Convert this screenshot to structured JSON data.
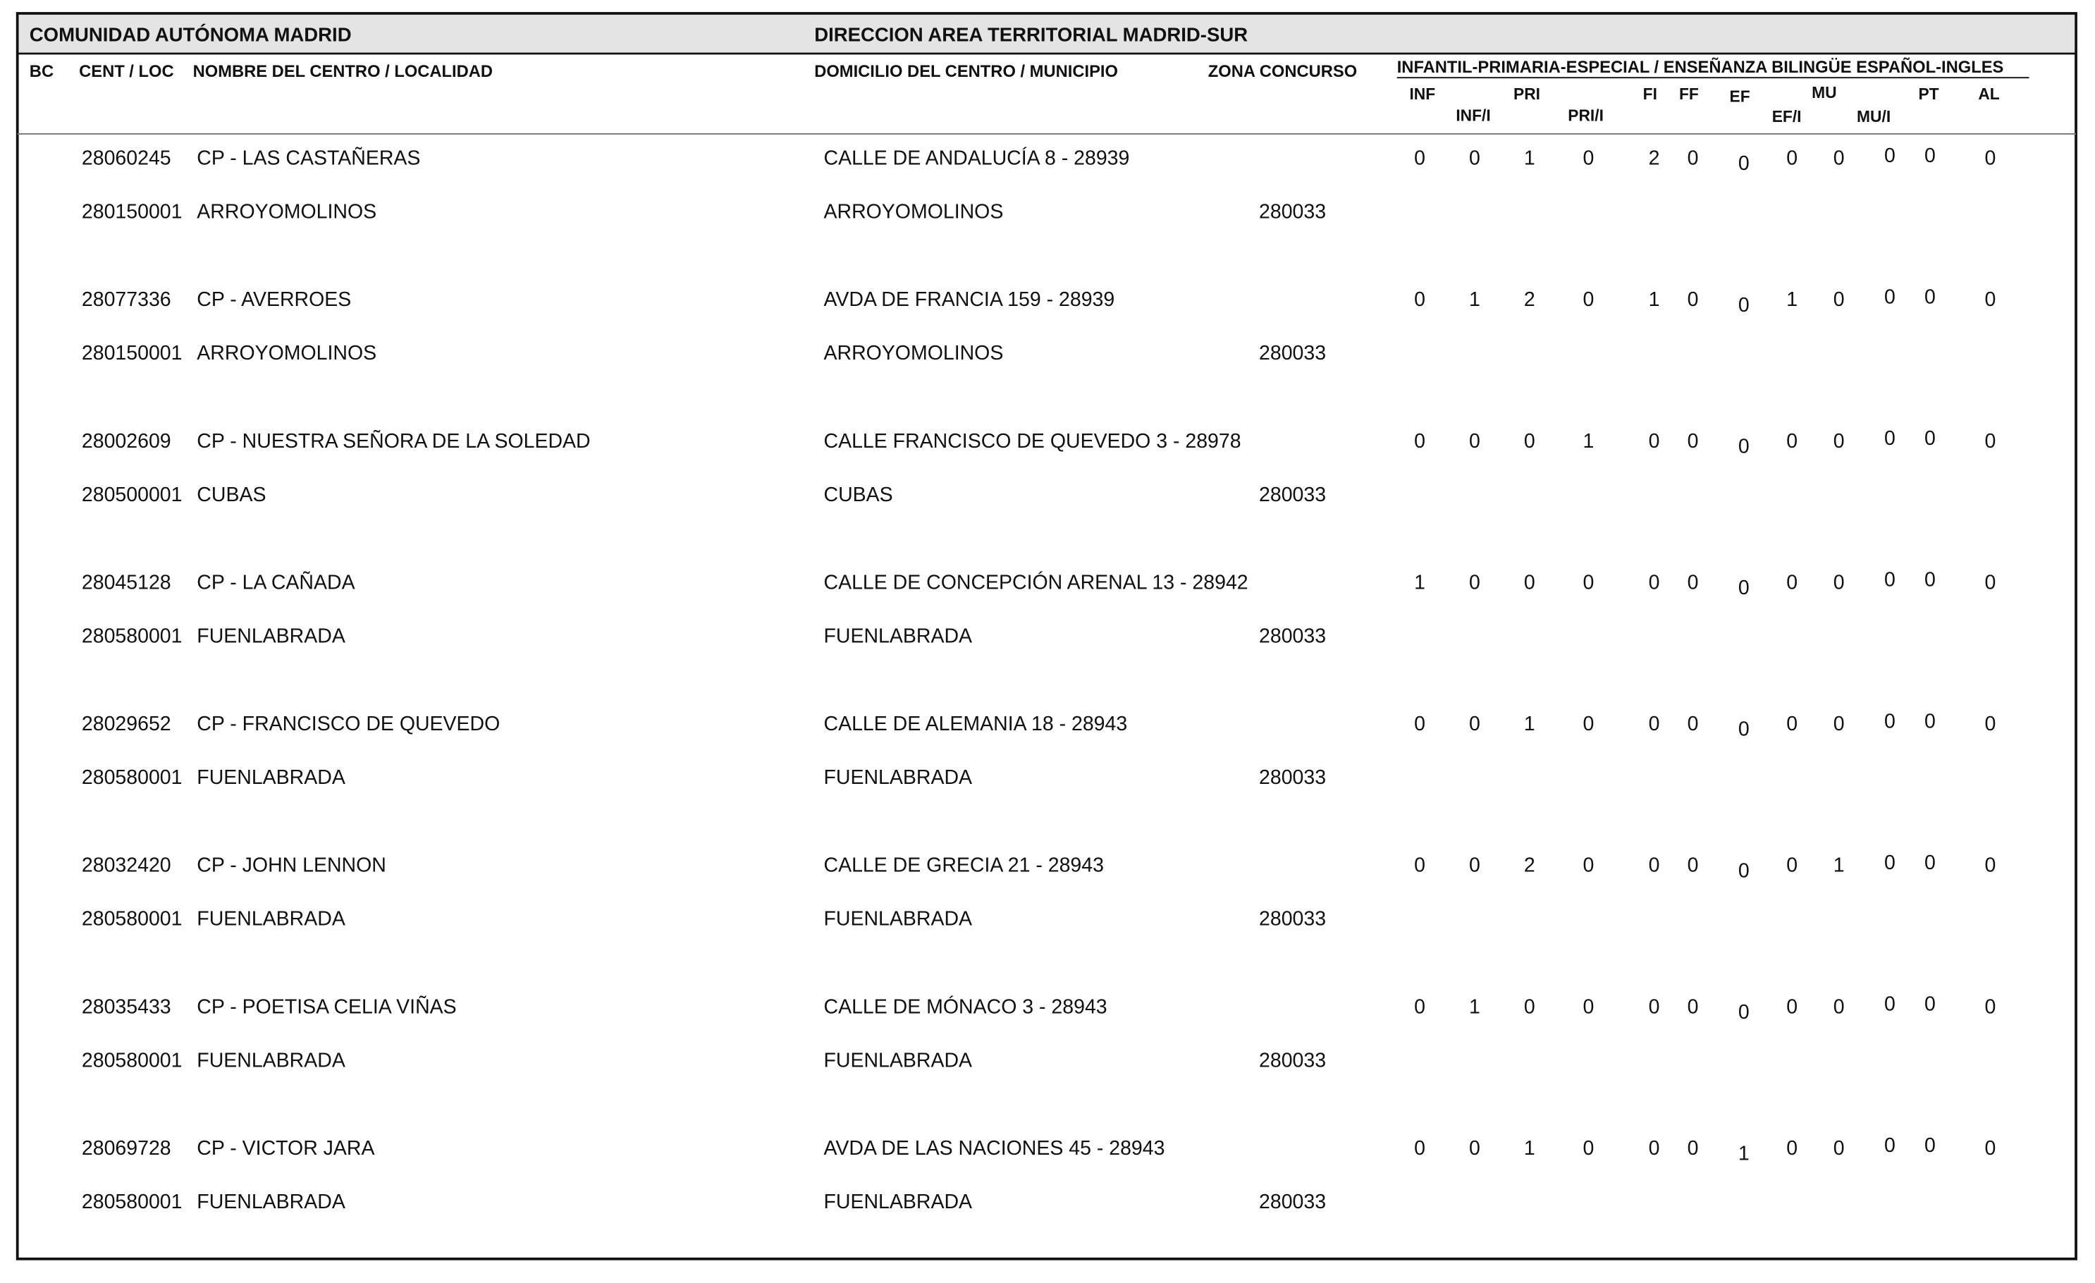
{
  "header": {
    "left": "COMUNIDAD AUTÓNOMA MADRID",
    "right": "DIRECCION AREA TERRITORIAL MADRID-SUR"
  },
  "columns": {
    "bc": "BC",
    "cent_loc": "CENT / LOC",
    "name": "NOMBRE DEL CENTRO / LOCALIDAD",
    "address": "DOMICILIO DEL CENTRO / MUNICIPIO",
    "zona": "ZONA CONCURSO",
    "group": "INFANTIL-PRIMARIA-ESPECIAL / ENSEÑANZA BILINGÜE ESPAÑOL-INGLES",
    "subs": [
      "INF",
      "INF/I",
      "PRI",
      "PRI/I",
      "FI",
      "FF",
      "EF",
      "EF/I",
      "MU",
      "MU/I",
      "PT",
      "AL"
    ]
  },
  "rows": [
    {
      "code": "28060245",
      "name": "CP - LAS CASTAÑERAS",
      "address": "CALLE DE ANDALUCÍA 8 - 28939",
      "loc_code": "280150001",
      "locality": "ARROYOMOLINOS",
      "municipality": "ARROYOMOLINOS",
      "zona": "280033",
      "counts": [
        0,
        0,
        1,
        0,
        2,
        0,
        0,
        0,
        0,
        0,
        0,
        0
      ]
    },
    {
      "code": "28077336",
      "name": "CP - AVERROES",
      "address": "AVDA DE FRANCIA 159 - 28939",
      "loc_code": "280150001",
      "locality": "ARROYOMOLINOS",
      "municipality": "ARROYOMOLINOS",
      "zona": "280033",
      "counts": [
        0,
        1,
        2,
        0,
        1,
        0,
        0,
        1,
        0,
        0,
        0,
        0
      ]
    },
    {
      "code": "28002609",
      "name": "CP - NUESTRA SEÑORA DE LA SOLEDAD",
      "address": "CALLE FRANCISCO DE QUEVEDO 3 - 28978",
      "loc_code": "280500001",
      "locality": "CUBAS",
      "municipality": "CUBAS",
      "zona": "280033",
      "counts": [
        0,
        0,
        0,
        1,
        0,
        0,
        0,
        0,
        0,
        0,
        0,
        0
      ]
    },
    {
      "code": "28045128",
      "name": "CP - LA CAÑADA",
      "address": "CALLE DE CONCEPCIÓN ARENAL 13 - 28942",
      "loc_code": "280580001",
      "locality": "FUENLABRADA",
      "municipality": "FUENLABRADA",
      "zona": "280033",
      "counts": [
        1,
        0,
        0,
        0,
        0,
        0,
        0,
        0,
        0,
        0,
        0,
        0
      ]
    },
    {
      "code": "28029652",
      "name": "CP - FRANCISCO DE QUEVEDO",
      "address": "CALLE DE ALEMANIA 18 - 28943",
      "loc_code": "280580001",
      "locality": "FUENLABRADA",
      "municipality": "FUENLABRADA",
      "zona": "280033",
      "counts": [
        0,
        0,
        1,
        0,
        0,
        0,
        0,
        0,
        0,
        0,
        0,
        0
      ]
    },
    {
      "code": "28032420",
      "name": "CP - JOHN LENNON",
      "address": "CALLE DE GRECIA 21 - 28943",
      "loc_code": "280580001",
      "locality": "FUENLABRADA",
      "municipality": "FUENLABRADA",
      "zona": "280033",
      "counts": [
        0,
        0,
        2,
        0,
        0,
        0,
        0,
        0,
        1,
        0,
        0,
        0
      ]
    },
    {
      "code": "28035433",
      "name": "CP - POETISA CELIA VIÑAS",
      "address": "CALLE DE MÓNACO 3 - 28943",
      "loc_code": "280580001",
      "locality": "FUENLABRADA",
      "municipality": "FUENLABRADA",
      "zona": "280033",
      "counts": [
        0,
        1,
        0,
        0,
        0,
        0,
        0,
        0,
        0,
        0,
        0,
        0
      ]
    },
    {
      "code": "28069728",
      "name": "CP - VICTOR JARA",
      "address": "AVDA DE LAS NACIONES 45 - 28943",
      "loc_code": "280580001",
      "locality": "FUENLABRADA",
      "municipality": "FUENLABRADA",
      "zona": "280033",
      "counts": [
        0,
        0,
        1,
        0,
        0,
        0,
        1,
        0,
        0,
        0,
        0,
        0
      ]
    }
  ]
}
